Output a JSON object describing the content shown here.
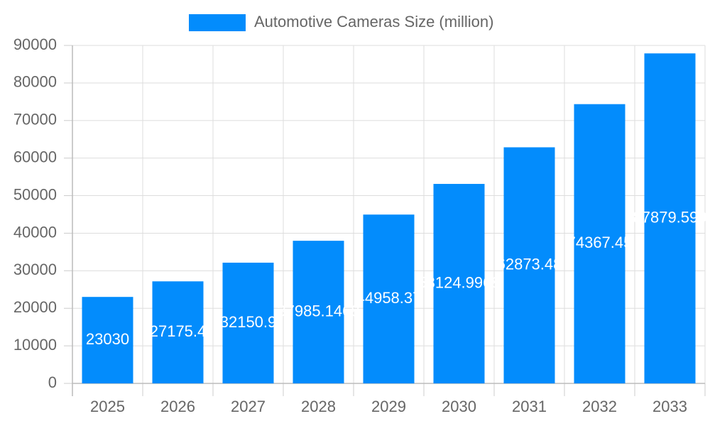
{
  "chart_data": {
    "type": "bar",
    "legend_label": "Automotive Cameras Size (million)",
    "color": "#038cfc",
    "categories": [
      "2025",
      "2026",
      "2027",
      "2028",
      "2029",
      "2030",
      "2031",
      "2032",
      "2033"
    ],
    "values": [
      23030,
      27175.4,
      32150.9,
      37985.1468,
      44958.37,
      53124.9968,
      62873.48,
      74367.45,
      87879.599
    ],
    "ylim": [
      0,
      90000
    ],
    "yticks": [
      0,
      10000,
      20000,
      30000,
      40000,
      50000,
      60000,
      70000,
      80000,
      90000
    ],
    "grid": true
  }
}
